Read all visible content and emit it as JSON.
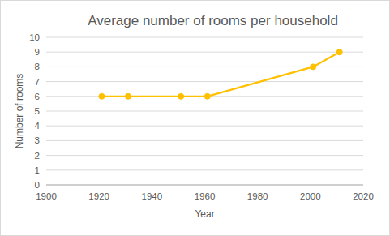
{
  "chart_data": {
    "type": "line",
    "title": "Average number of rooms per household",
    "x_label": "Year",
    "y_label": "Number of rooms",
    "x": [
      1921,
      1931,
      1951,
      1961,
      2001,
      2011
    ],
    "values": [
      6,
      6,
      6,
      6,
      8,
      9
    ],
    "color": "#ffc000",
    "marker": "circle",
    "line_style": "solid",
    "xlim": [
      1900,
      2020
    ],
    "xticks": [
      1900,
      1920,
      1940,
      1960,
      1980,
      2000,
      2020
    ],
    "ylim": [
      0,
      10
    ],
    "yticks": [
      0,
      1,
      2,
      3,
      4,
      5,
      6,
      7,
      8,
      9,
      10
    ],
    "grid": true
  }
}
